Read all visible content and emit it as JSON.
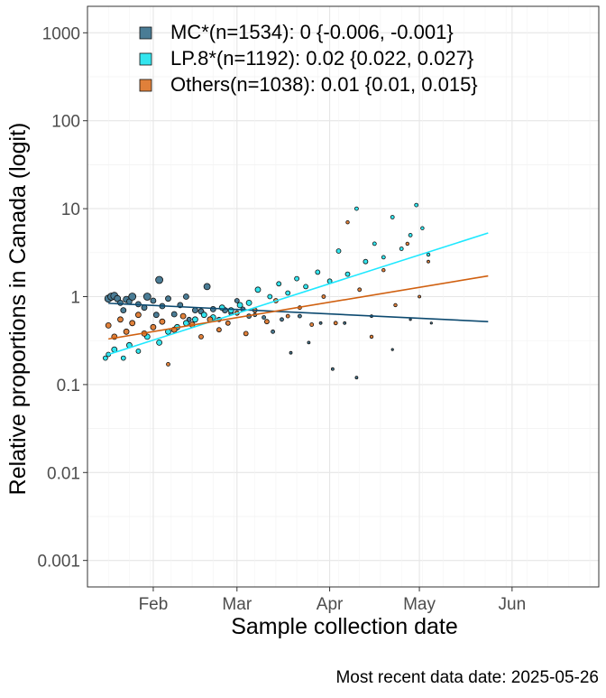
{
  "chart_data": {
    "type": "scatter",
    "title": "",
    "xlabel": "Sample collection date",
    "ylabel": "Relative proportions in Canada (logit)",
    "caption": "Most recent data date: 2025-05-26",
    "x_range": [
      "2025-01-10",
      "2025-06-30"
    ],
    "y_range": [
      0.0005,
      2000
    ],
    "y_scale": "log",
    "grid": true,
    "legend_position": "top-left",
    "x_ticks": [
      {
        "label": "Feb",
        "date": "2025-02-01"
      },
      {
        "label": "Mar",
        "date": "2025-03-01"
      },
      {
        "label": "Apr",
        "date": "2025-04-01"
      },
      {
        "label": "May",
        "date": "2025-05-01"
      },
      {
        "label": "Jun",
        "date": "2025-06-01"
      }
    ],
    "y_ticks": [
      {
        "label": "0.001",
        "value": 0.001
      },
      {
        "label": "0.01",
        "value": 0.01
      },
      {
        "label": "0.1",
        "value": 0.1
      },
      {
        "label": "1",
        "value": 1
      },
      {
        "label": "10",
        "value": 10
      },
      {
        "label": "100",
        "value": 100
      },
      {
        "label": "1000",
        "value": 1000
      }
    ],
    "series": [
      {
        "name": "MC*(n=1534): 0 {-0.006, -0.001}",
        "color": "#4a7c95",
        "line_color": "#0d4a70",
        "fit": {
          "start": {
            "date": "2025-01-17",
            "value": 0.84
          },
          "end": {
            "date": "2025-05-24",
            "value": 0.52
          }
        },
        "points": [
          {
            "date": "2025-01-17",
            "value": 0.95,
            "size": 4
          },
          {
            "date": "2025-01-18",
            "value": 1.0,
            "size": 4
          },
          {
            "date": "2025-01-19",
            "value": 1.02,
            "size": 4
          },
          {
            "date": "2025-01-20",
            "value": 0.95,
            "size": 3.5
          },
          {
            "date": "2025-01-21",
            "value": 0.85,
            "size": 3
          },
          {
            "date": "2025-01-22",
            "value": 0.7,
            "size": 3
          },
          {
            "date": "2025-01-23",
            "value": 0.93,
            "size": 3.5
          },
          {
            "date": "2025-01-24",
            "value": 0.88,
            "size": 3
          },
          {
            "date": "2025-01-25",
            "value": 1.0,
            "size": 4
          },
          {
            "date": "2025-01-27",
            "value": 0.82,
            "size": 3
          },
          {
            "date": "2025-01-29",
            "value": 0.75,
            "size": 3
          },
          {
            "date": "2025-01-30",
            "value": 1.0,
            "size": 4
          },
          {
            "date": "2025-02-01",
            "value": 0.9,
            "size": 3
          },
          {
            "date": "2025-02-02",
            "value": 0.62,
            "size": 3
          },
          {
            "date": "2025-02-03",
            "value": 1.55,
            "size": 4
          },
          {
            "date": "2025-02-04",
            "value": 0.78,
            "size": 3
          },
          {
            "date": "2025-02-06",
            "value": 0.95,
            "size": 3
          },
          {
            "date": "2025-02-08",
            "value": 0.63,
            "size": 3
          },
          {
            "date": "2025-02-10",
            "value": 0.8,
            "size": 3
          },
          {
            "date": "2025-02-12",
            "value": 1.0,
            "size": 3
          },
          {
            "date": "2025-02-13",
            "value": 0.55,
            "size": 2.5
          },
          {
            "date": "2025-02-15",
            "value": 0.7,
            "size": 3
          },
          {
            "date": "2025-02-17",
            "value": 0.68,
            "size": 3
          },
          {
            "date": "2025-02-19",
            "value": 1.3,
            "size": 3.5
          },
          {
            "date": "2025-02-21",
            "value": 0.72,
            "size": 3
          },
          {
            "date": "2025-02-23",
            "value": 0.55,
            "size": 2.5
          },
          {
            "date": "2025-02-25",
            "value": 0.7,
            "size": 3
          },
          {
            "date": "2025-02-27",
            "value": 0.65,
            "size": 2.5
          },
          {
            "date": "2025-03-01",
            "value": 0.9,
            "size": 2.5
          },
          {
            "date": "2025-03-03",
            "value": 0.72,
            "size": 2.5
          },
          {
            "date": "2025-03-05",
            "value": 0.6,
            "size": 2.5
          },
          {
            "date": "2025-03-07",
            "value": 0.62,
            "size": 2
          },
          {
            "date": "2025-03-10",
            "value": 0.58,
            "size": 2
          },
          {
            "date": "2025-03-13",
            "value": 0.4,
            "size": 2
          },
          {
            "date": "2025-03-16",
            "value": 0.55,
            "size": 2
          },
          {
            "date": "2025-03-19",
            "value": 0.23,
            "size": 1.5
          },
          {
            "date": "2025-03-22",
            "value": 0.6,
            "size": 2
          },
          {
            "date": "2025-03-25",
            "value": 0.3,
            "size": 1.5
          },
          {
            "date": "2025-03-29",
            "value": 0.5,
            "size": 1.5
          },
          {
            "date": "2025-04-02",
            "value": 0.15,
            "size": 1.5
          },
          {
            "date": "2025-04-06",
            "value": 0.5,
            "size": 1.5
          },
          {
            "date": "2025-04-10",
            "value": 0.12,
            "size": 1.5
          },
          {
            "date": "2025-04-15",
            "value": 0.6,
            "size": 1.5
          },
          {
            "date": "2025-04-22",
            "value": 0.25,
            "size": 1.2
          },
          {
            "date": "2025-04-28",
            "value": 0.55,
            "size": 1.2
          },
          {
            "date": "2025-05-05",
            "value": 0.5,
            "size": 1.2
          }
        ]
      },
      {
        "name": "LP.8*(n=1192): 0.02 {0.022, 0.027}",
        "color": "#33e5ee",
        "line_color": "#1ee8ff",
        "fit": {
          "start": {
            "date": "2025-01-17",
            "value": 0.22
          },
          "end": {
            "date": "2025-05-24",
            "value": 5.3
          }
        },
        "points": [
          {
            "date": "2025-01-16",
            "value": 0.2,
            "size": 2.5
          },
          {
            "date": "2025-01-17",
            "value": 0.22,
            "size": 2.5
          },
          {
            "date": "2025-01-19",
            "value": 0.25,
            "size": 3
          },
          {
            "date": "2025-01-22",
            "value": 0.2,
            "size": 2.5
          },
          {
            "date": "2025-01-24",
            "value": 0.28,
            "size": 3
          },
          {
            "date": "2025-01-27",
            "value": 0.24,
            "size": 2.5
          },
          {
            "date": "2025-01-30",
            "value": 0.35,
            "size": 3
          },
          {
            "date": "2025-02-03",
            "value": 0.3,
            "size": 3
          },
          {
            "date": "2025-02-06",
            "value": 0.4,
            "size": 3
          },
          {
            "date": "2025-02-09",
            "value": 0.45,
            "size": 3
          },
          {
            "date": "2025-02-12",
            "value": 0.5,
            "size": 3
          },
          {
            "date": "2025-02-15",
            "value": 0.55,
            "size": 3
          },
          {
            "date": "2025-02-18",
            "value": 0.62,
            "size": 3
          },
          {
            "date": "2025-02-21",
            "value": 0.58,
            "size": 3
          },
          {
            "date": "2025-02-24",
            "value": 0.75,
            "size": 3
          },
          {
            "date": "2025-02-27",
            "value": 0.7,
            "size": 3
          },
          {
            "date": "2025-03-02",
            "value": 0.8,
            "size": 3
          },
          {
            "date": "2025-03-05",
            "value": 0.85,
            "size": 3
          },
          {
            "date": "2025-03-08",
            "value": 1.2,
            "size": 3
          },
          {
            "date": "2025-03-12",
            "value": 1.0,
            "size": 2.5
          },
          {
            "date": "2025-03-15",
            "value": 1.4,
            "size": 2.5
          },
          {
            "date": "2025-03-18",
            "value": 1.1,
            "size": 2.5
          },
          {
            "date": "2025-03-21",
            "value": 1.6,
            "size": 2.5
          },
          {
            "date": "2025-03-24",
            "value": 1.3,
            "size": 2.5
          },
          {
            "date": "2025-03-28",
            "value": 1.9,
            "size": 2.5
          },
          {
            "date": "2025-04-01",
            "value": 1.5,
            "size": 2.5
          },
          {
            "date": "2025-04-04",
            "value": 3.3,
            "size": 2.5
          },
          {
            "date": "2025-04-07",
            "value": 1.8,
            "size": 2.5
          },
          {
            "date": "2025-04-10",
            "value": 10.0,
            "size": 2
          },
          {
            "date": "2025-04-13",
            "value": 2.5,
            "size": 2.5
          },
          {
            "date": "2025-04-16",
            "value": 4.0,
            "size": 2
          },
          {
            "date": "2025-04-19",
            "value": 2.8,
            "size": 2
          },
          {
            "date": "2025-04-22",
            "value": 8.0,
            "size": 2
          },
          {
            "date": "2025-04-25",
            "value": 3.5,
            "size": 2
          },
          {
            "date": "2025-04-28",
            "value": 5.0,
            "size": 2
          },
          {
            "date": "2025-04-30",
            "value": 11.0,
            "size": 2
          },
          {
            "date": "2025-05-02",
            "value": 6.0,
            "size": 1.8
          },
          {
            "date": "2025-05-04",
            "value": 3.0,
            "size": 1.8
          }
        ]
      },
      {
        "name": "Others(n=1038): 0.01 {0.01, 0.015}",
        "color": "#e0803a",
        "line_color": "#d06010",
        "fit": {
          "start": {
            "date": "2025-01-17",
            "value": 0.33
          },
          "end": {
            "date": "2025-05-24",
            "value": 1.72
          }
        },
        "points": [
          {
            "date": "2025-01-17",
            "value": 0.47,
            "size": 3
          },
          {
            "date": "2025-01-19",
            "value": 0.35,
            "size": 3
          },
          {
            "date": "2025-01-21",
            "value": 0.55,
            "size": 3
          },
          {
            "date": "2025-01-23",
            "value": 0.4,
            "size": 3
          },
          {
            "date": "2025-01-25",
            "value": 0.5,
            "size": 3
          },
          {
            "date": "2025-01-27",
            "value": 0.62,
            "size": 3
          },
          {
            "date": "2025-01-29",
            "value": 0.38,
            "size": 3
          },
          {
            "date": "2025-02-01",
            "value": 0.45,
            "size": 3
          },
          {
            "date": "2025-02-04",
            "value": 0.52,
            "size": 3
          },
          {
            "date": "2025-02-06",
            "value": 0.17,
            "size": 2
          },
          {
            "date": "2025-02-08",
            "value": 0.42,
            "size": 3
          },
          {
            "date": "2025-02-11",
            "value": 0.6,
            "size": 3
          },
          {
            "date": "2025-02-14",
            "value": 0.48,
            "size": 3
          },
          {
            "date": "2025-02-17",
            "value": 0.35,
            "size": 2.5
          },
          {
            "date": "2025-02-20",
            "value": 0.55,
            "size": 3
          },
          {
            "date": "2025-02-23",
            "value": 0.42,
            "size": 2.5
          },
          {
            "date": "2025-02-26",
            "value": 0.5,
            "size": 2.5
          },
          {
            "date": "2025-03-01",
            "value": 0.65,
            "size": 2.5
          },
          {
            "date": "2025-03-04",
            "value": 0.38,
            "size": 2.5
          },
          {
            "date": "2025-03-07",
            "value": 0.7,
            "size": 2.5
          },
          {
            "date": "2025-03-11",
            "value": 0.52,
            "size": 2.5
          },
          {
            "date": "2025-03-14",
            "value": 0.9,
            "size": 2.5
          },
          {
            "date": "2025-03-18",
            "value": 0.6,
            "size": 2
          },
          {
            "date": "2025-03-22",
            "value": 0.75,
            "size": 2
          },
          {
            "date": "2025-03-26",
            "value": 0.48,
            "size": 2
          },
          {
            "date": "2025-03-30",
            "value": 1.0,
            "size": 2
          },
          {
            "date": "2025-04-03",
            "value": 0.5,
            "size": 2
          },
          {
            "date": "2025-04-07",
            "value": 7.0,
            "size": 1.8
          },
          {
            "date": "2025-04-11",
            "value": 1.2,
            "size": 2
          },
          {
            "date": "2025-04-15",
            "value": 0.35,
            "size": 1.8
          },
          {
            "date": "2025-04-19",
            "value": 2.0,
            "size": 1.8
          },
          {
            "date": "2025-04-23",
            "value": 0.8,
            "size": 1.8
          },
          {
            "date": "2025-04-27",
            "value": 4.0,
            "size": 1.8
          },
          {
            "date": "2025-05-01",
            "value": 1.0,
            "size": 1.5
          },
          {
            "date": "2025-05-04",
            "value": 2.5,
            "size": 1.5
          }
        ]
      }
    ]
  }
}
